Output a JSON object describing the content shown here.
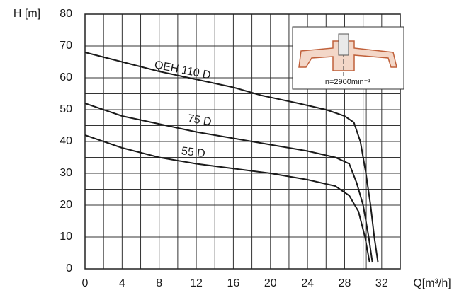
{
  "chart_data": {
    "type": "line",
    "x_label": "Q[m³/h]",
    "y_label": "H [m]",
    "xlim": [
      0,
      34
    ],
    "ylim": [
      0,
      80
    ],
    "xticks": [
      0,
      4,
      8,
      12,
      16,
      20,
      24,
      28,
      32
    ],
    "yticks": [
      0,
      10,
      20,
      30,
      40,
      50,
      60,
      70,
      80
    ],
    "grid": true,
    "x_grid_step": 2,
    "y_grid_step": 5,
    "vertical_line_x": 30.3,
    "inset_label": "n=2900min⁻¹",
    "series": [
      {
        "name": "QEH 110 D",
        "color": "#1a1a1a",
        "x": [
          0,
          4,
          8,
          12,
          16,
          19,
          23,
          26,
          28,
          29,
          29.7,
          30.3,
          30.8,
          31.2,
          31.6
        ],
        "values": [
          68,
          65,
          62,
          59.5,
          57,
          54.5,
          52,
          50,
          48,
          46,
          40,
          30,
          20,
          10,
          2
        ]
      },
      {
        "name": "75 D",
        "color": "#1a1a1a",
        "x": [
          0,
          4,
          8,
          12,
          16,
          20,
          24,
          27,
          28.5,
          29.3,
          30,
          30.6,
          31
        ],
        "values": [
          52,
          48,
          45.5,
          43,
          41,
          39,
          37,
          35,
          33,
          27,
          20,
          10,
          2
        ]
      },
      {
        "name": "55 D",
        "color": "#1a1a1a",
        "x": [
          0,
          4,
          8,
          12,
          16,
          20,
          24,
          27,
          28.5,
          29.5,
          30.2,
          30.7
        ],
        "values": [
          42,
          38,
          35,
          33,
          31.5,
          30,
          28,
          26,
          23,
          18,
          10,
          2
        ]
      }
    ]
  }
}
